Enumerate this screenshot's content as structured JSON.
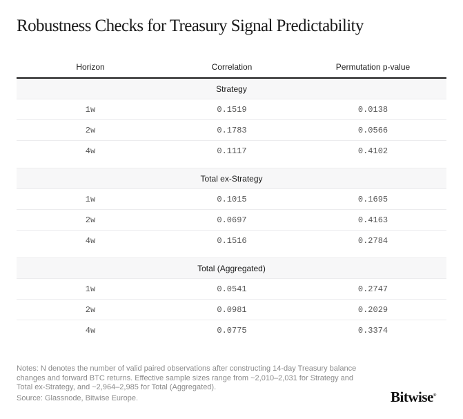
{
  "title": "Robustness Checks for Treasury Signal Predictability",
  "table": {
    "columns": [
      "Horizon",
      "Correlation",
      "Permutation p-value"
    ],
    "groups": [
      {
        "name": "Strategy",
        "rows": [
          {
            "horizon": "1w",
            "correlation": "0.1519",
            "p_value": "0.0138"
          },
          {
            "horizon": "2w",
            "correlation": "0.1783",
            "p_value": "0.0566"
          },
          {
            "horizon": "4w",
            "correlation": "0.1117",
            "p_value": "0.4102"
          }
        ]
      },
      {
        "name": "Total ex-Strategy",
        "rows": [
          {
            "horizon": "1w",
            "correlation": "0.1015",
            "p_value": "0.1695"
          },
          {
            "horizon": "2w",
            "correlation": "0.0697",
            "p_value": "0.4163"
          },
          {
            "horizon": "4w",
            "correlation": "0.1516",
            "p_value": "0.2784"
          }
        ]
      },
      {
        "name": "Total (Aggregated)",
        "rows": [
          {
            "horizon": "1w",
            "correlation": "0.0541",
            "p_value": "0.2747"
          },
          {
            "horizon": "2w",
            "correlation": "0.0981",
            "p_value": "0.2029"
          },
          {
            "horizon": "4w",
            "correlation": "0.0775",
            "p_value": "0.3374"
          }
        ]
      }
    ]
  },
  "notes": "Notes: N denotes the number of valid paired observations after constructing 14-day Treasury balance changes and forward BTC returns. Effective sample sizes range from ~2,010–2,031 for Strategy and Total ex-Strategy, and ~2,964–2,985 for Total (Aggregated).",
  "source": "Source: Glassnode, Bitwise Europe.",
  "logo": {
    "text": "Bitwise",
    "mark": "®"
  }
}
